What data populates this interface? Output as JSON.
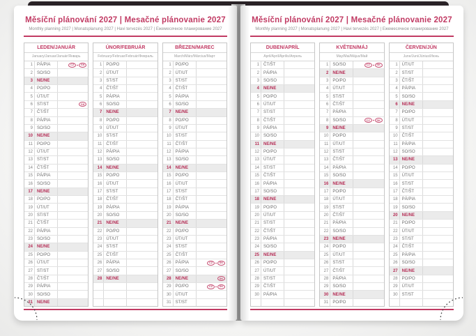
{
  "header": {
    "title": "Měsíční plánování 2027 | Mesačné plánovanie 2027",
    "subtitle": "Monthly planning 2027 | Monatsplanung 2027 | Havi tervezés 2027 | Ежемесячное планирование 2027"
  },
  "colors": {
    "accent": "#c13a63",
    "sunday_text": "#b52e56",
    "sunday_row_bg": "#ebebeb",
    "grid": "#d9d9d9",
    "day_text": "#6e6e6e",
    "cover": "#2a2327"
  },
  "legend": {
    "badge_cz": "CZ",
    "badge_sk": "SK",
    "badge_meaning": "public-holiday-country-marker"
  },
  "pages": [
    {
      "side": "left",
      "months": [
        {
          "name": "LEDEN/JANUÁR",
          "sub": "January/Januar/Január/Январь",
          "days": [
            [
              1,
              "PÁ/PIA",
              0,
              [
                "CZ",
                "SK"
              ]
            ],
            [
              2,
              "SO/SO",
              0
            ],
            [
              3,
              "NE/NE",
              1
            ],
            [
              4,
              "PO/PO",
              0
            ],
            [
              5,
              "ÚT/UT",
              0
            ],
            [
              6,
              "ST/ST",
              0,
              [
                "SK"
              ]
            ],
            [
              7,
              "ČT/ŠT",
              0
            ],
            [
              8,
              "PÁ/PIA",
              0
            ],
            [
              9,
              "SO/SO",
              0
            ],
            [
              10,
              "NE/NE",
              1
            ],
            [
              11,
              "PO/PO",
              0
            ],
            [
              12,
              "ÚT/UT",
              0
            ],
            [
              13,
              "ST/ST",
              0
            ],
            [
              14,
              "ČT/ŠT",
              0
            ],
            [
              15,
              "PÁ/PIA",
              0
            ],
            [
              16,
              "SO/SO",
              0
            ],
            [
              17,
              "NE/NE",
              1
            ],
            [
              18,
              "PO/PO",
              0
            ],
            [
              19,
              "ÚT/UT",
              0
            ],
            [
              20,
              "ST/ST",
              0
            ],
            [
              21,
              "ČT/ŠT",
              0
            ],
            [
              22,
              "PÁ/PIA",
              0
            ],
            [
              23,
              "SO/SO",
              0
            ],
            [
              24,
              "NE/NE",
              1
            ],
            [
              25,
              "PO/PO",
              0
            ],
            [
              26,
              "ÚT/UT",
              0
            ],
            [
              27,
              "ST/ST",
              0
            ],
            [
              28,
              "ČT/ŠT",
              0
            ],
            [
              29,
              "PÁ/PIA",
              0
            ],
            [
              30,
              "SO/SO",
              0
            ],
            [
              31,
              "NE/NE",
              1
            ]
          ]
        },
        {
          "name": "ÚNOR/FEBRUÁR",
          "sub": "February/Februar/Február/Февраль",
          "days": [
            [
              1,
              "PO/PO",
              0
            ],
            [
              2,
              "ÚT/UT",
              0
            ],
            [
              3,
              "ST/ST",
              0
            ],
            [
              4,
              "ČT/ŠT",
              0
            ],
            [
              5,
              "PÁ/PIA",
              0
            ],
            [
              6,
              "SO/SO",
              0
            ],
            [
              7,
              "NE/NE",
              1
            ],
            [
              8,
              "PO/PO",
              0
            ],
            [
              9,
              "ÚT/UT",
              0
            ],
            [
              10,
              "ST/ST",
              0
            ],
            [
              11,
              "ČT/ŠT",
              0
            ],
            [
              12,
              "PÁ/PIA",
              0
            ],
            [
              13,
              "SO/SO",
              0
            ],
            [
              14,
              "NE/NE",
              1
            ],
            [
              15,
              "PO/PO",
              0
            ],
            [
              16,
              "ÚT/UT",
              0
            ],
            [
              17,
              "ST/ST",
              0
            ],
            [
              18,
              "ČT/ŠT",
              0
            ],
            [
              19,
              "PÁ/PIA",
              0
            ],
            [
              20,
              "SO/SO",
              0
            ],
            [
              21,
              "NE/NE",
              1
            ],
            [
              22,
              "PO/PO",
              0
            ],
            [
              23,
              "ÚT/UT",
              0
            ],
            [
              24,
              "ST/ST",
              0
            ],
            [
              25,
              "ČT/ŠT",
              0
            ],
            [
              26,
              "PÁ/PIA",
              0
            ],
            [
              27,
              "SO/SO",
              0
            ],
            [
              28,
              "NE/NE",
              1
            ],
            [],
            [],
            []
          ]
        },
        {
          "name": "BŘEZEN/MAREC",
          "sub": "March/März/Március/Март",
          "days": [
            [
              1,
              "PO/PO",
              0
            ],
            [
              2,
              "ÚT/UT",
              0
            ],
            [
              3,
              "ST/ST",
              0
            ],
            [
              4,
              "ČT/ŠT",
              0
            ],
            [
              5,
              "PÁ/PIA",
              0
            ],
            [
              6,
              "SO/SO",
              0
            ],
            [
              7,
              "NE/NE",
              1
            ],
            [
              8,
              "PO/PO",
              0
            ],
            [
              9,
              "ÚT/UT",
              0
            ],
            [
              10,
              "ST/ST",
              0
            ],
            [
              11,
              "ČT/ŠT",
              0
            ],
            [
              12,
              "PÁ/PIA",
              0
            ],
            [
              13,
              "SO/SO",
              0
            ],
            [
              14,
              "NE/NE",
              1
            ],
            [
              15,
              "PO/PO",
              0
            ],
            [
              16,
              "ÚT/UT",
              0
            ],
            [
              17,
              "ST/ST",
              0
            ],
            [
              18,
              "ČT/ŠT",
              0
            ],
            [
              19,
              "PÁ/PIA",
              0
            ],
            [
              20,
              "SO/SO",
              0
            ],
            [
              21,
              "NE/NE",
              1
            ],
            [
              22,
              "PO/PO",
              0
            ],
            [
              23,
              "ÚT/UT",
              0
            ],
            [
              24,
              "ST/ST",
              0
            ],
            [
              25,
              "ČT/ŠT",
              0
            ],
            [
              26,
              "PÁ/PIA",
              0,
              [
                "CZ",
                "SK"
              ]
            ],
            [
              27,
              "SO/SO",
              0
            ],
            [
              28,
              "NE/NE",
              1,
              [
                "SK"
              ]
            ],
            [
              29,
              "PO/PO",
              0,
              [
                "CZ",
                "SK"
              ]
            ],
            [
              30,
              "ÚT/UT",
              0
            ],
            [
              31,
              "ST/ST",
              0
            ]
          ]
        }
      ]
    },
    {
      "side": "right",
      "months": [
        {
          "name": "DUBEN/APRÍL",
          "sub": "April/April/Április/Апрель",
          "days": [
            [
              1,
              "ČT/ŠT",
              0
            ],
            [
              2,
              "PÁ/PIA",
              0
            ],
            [
              3,
              "SO/SO",
              0
            ],
            [
              4,
              "NE/NE",
              1
            ],
            [
              5,
              "PO/PO",
              0
            ],
            [
              6,
              "ÚT/UT",
              0
            ],
            [
              7,
              "ST/ST",
              0
            ],
            [
              8,
              "ČT/ŠT",
              0
            ],
            [
              9,
              "PÁ/PIA",
              0
            ],
            [
              10,
              "SO/SO",
              0
            ],
            [
              11,
              "NE/NE",
              1
            ],
            [
              12,
              "PO/PO",
              0
            ],
            [
              13,
              "ÚT/UT",
              0
            ],
            [
              14,
              "ST/ST",
              0
            ],
            [
              15,
              "ČT/ŠT",
              0
            ],
            [
              16,
              "PÁ/PIA",
              0
            ],
            [
              17,
              "SO/SO",
              0
            ],
            [
              18,
              "NE/NE",
              1
            ],
            [
              19,
              "PO/PO",
              0
            ],
            [
              20,
              "ÚT/UT",
              0
            ],
            [
              21,
              "ST/ST",
              0
            ],
            [
              22,
              "ČT/ŠT",
              0
            ],
            [
              23,
              "PÁ/PIA",
              0
            ],
            [
              24,
              "SO/SO",
              0
            ],
            [
              25,
              "NE/NE",
              1
            ],
            [
              26,
              "PO/PO",
              0
            ],
            [
              27,
              "ÚT/UT",
              0
            ],
            [
              28,
              "ST/ST",
              0
            ],
            [
              29,
              "ČT/ŠT",
              0
            ],
            [
              30,
              "PÁ/PIA",
              0
            ],
            []
          ]
        },
        {
          "name": "KVĚTEN/MÁJ",
          "sub": "May/Mai/Május/Май",
          "days": [
            [
              1,
              "SO/SO",
              0,
              [
                "CZ",
                "SK"
              ]
            ],
            [
              2,
              "NE/NE",
              1
            ],
            [
              3,
              "PO/PO",
              0
            ],
            [
              4,
              "ÚT/UT",
              0
            ],
            [
              5,
              "ST/ST",
              0
            ],
            [
              6,
              "ČT/ŠT",
              0
            ],
            [
              7,
              "PÁ/PIA",
              0
            ],
            [
              8,
              "SO/SO",
              0,
              [
                "CZ",
                "SK"
              ]
            ],
            [
              9,
              "NE/NE",
              1
            ],
            [
              10,
              "PO/PO",
              0
            ],
            [
              11,
              "ÚT/UT",
              0
            ],
            [
              12,
              "ST/ST",
              0
            ],
            [
              13,
              "ČT/ŠT",
              0
            ],
            [
              14,
              "PÁ/PIA",
              0
            ],
            [
              15,
              "SO/SO",
              0
            ],
            [
              16,
              "NE/NE",
              1
            ],
            [
              17,
              "PO/PO",
              0
            ],
            [
              18,
              "ÚT/UT",
              0
            ],
            [
              19,
              "ST/ST",
              0
            ],
            [
              20,
              "ČT/ŠT",
              0
            ],
            [
              21,
              "PÁ/PIA",
              0
            ],
            [
              22,
              "SO/SO",
              0
            ],
            [
              23,
              "NE/NE",
              1
            ],
            [
              24,
              "PO/PO",
              0
            ],
            [
              25,
              "ÚT/UT",
              0
            ],
            [
              26,
              "ST/ST",
              0
            ],
            [
              27,
              "ČT/ŠT",
              0
            ],
            [
              28,
              "PÁ/PIA",
              0
            ],
            [
              29,
              "SO/SO",
              0
            ],
            [
              30,
              "NE/NE",
              1
            ],
            [
              31,
              "PO/PO",
              0
            ]
          ]
        },
        {
          "name": "ČERVEN/JÚN",
          "sub": "June/Juni/Június/Июнь",
          "days": [
            [
              1,
              "ÚT/UT",
              0
            ],
            [
              2,
              "ST/ST",
              0
            ],
            [
              3,
              "ČT/ŠT",
              0
            ],
            [
              4,
              "PÁ/PIA",
              0
            ],
            [
              5,
              "SO/SO",
              0
            ],
            [
              6,
              "NE/NE",
              1
            ],
            [
              7,
              "PO/PO",
              0
            ],
            [
              8,
              "ÚT/UT",
              0
            ],
            [
              9,
              "ST/ST",
              0
            ],
            [
              10,
              "ČT/ŠT",
              0
            ],
            [
              11,
              "PÁ/PIA",
              0
            ],
            [
              12,
              "SO/SO",
              0
            ],
            [
              13,
              "NE/NE",
              1
            ],
            [
              14,
              "PO/PO",
              0
            ],
            [
              15,
              "ÚT/UT",
              0
            ],
            [
              16,
              "ST/ST",
              0
            ],
            [
              17,
              "ČT/ŠT",
              0
            ],
            [
              18,
              "PÁ/PIA",
              0
            ],
            [
              19,
              "SO/SO",
              0
            ],
            [
              20,
              "NE/NE",
              1
            ],
            [
              21,
              "PO/PO",
              0
            ],
            [
              22,
              "ÚT/UT",
              0
            ],
            [
              23,
              "ST/ST",
              0
            ],
            [
              24,
              "ČT/ŠT",
              0
            ],
            [
              25,
              "PÁ/PIA",
              0
            ],
            [
              26,
              "SO/SO",
              0
            ],
            [
              27,
              "NE/NE",
              1
            ],
            [
              28,
              "PO/PO",
              0
            ],
            [
              29,
              "ÚT/UT",
              0
            ],
            [
              30,
              "ST/ST",
              0
            ],
            []
          ]
        }
      ]
    }
  ]
}
